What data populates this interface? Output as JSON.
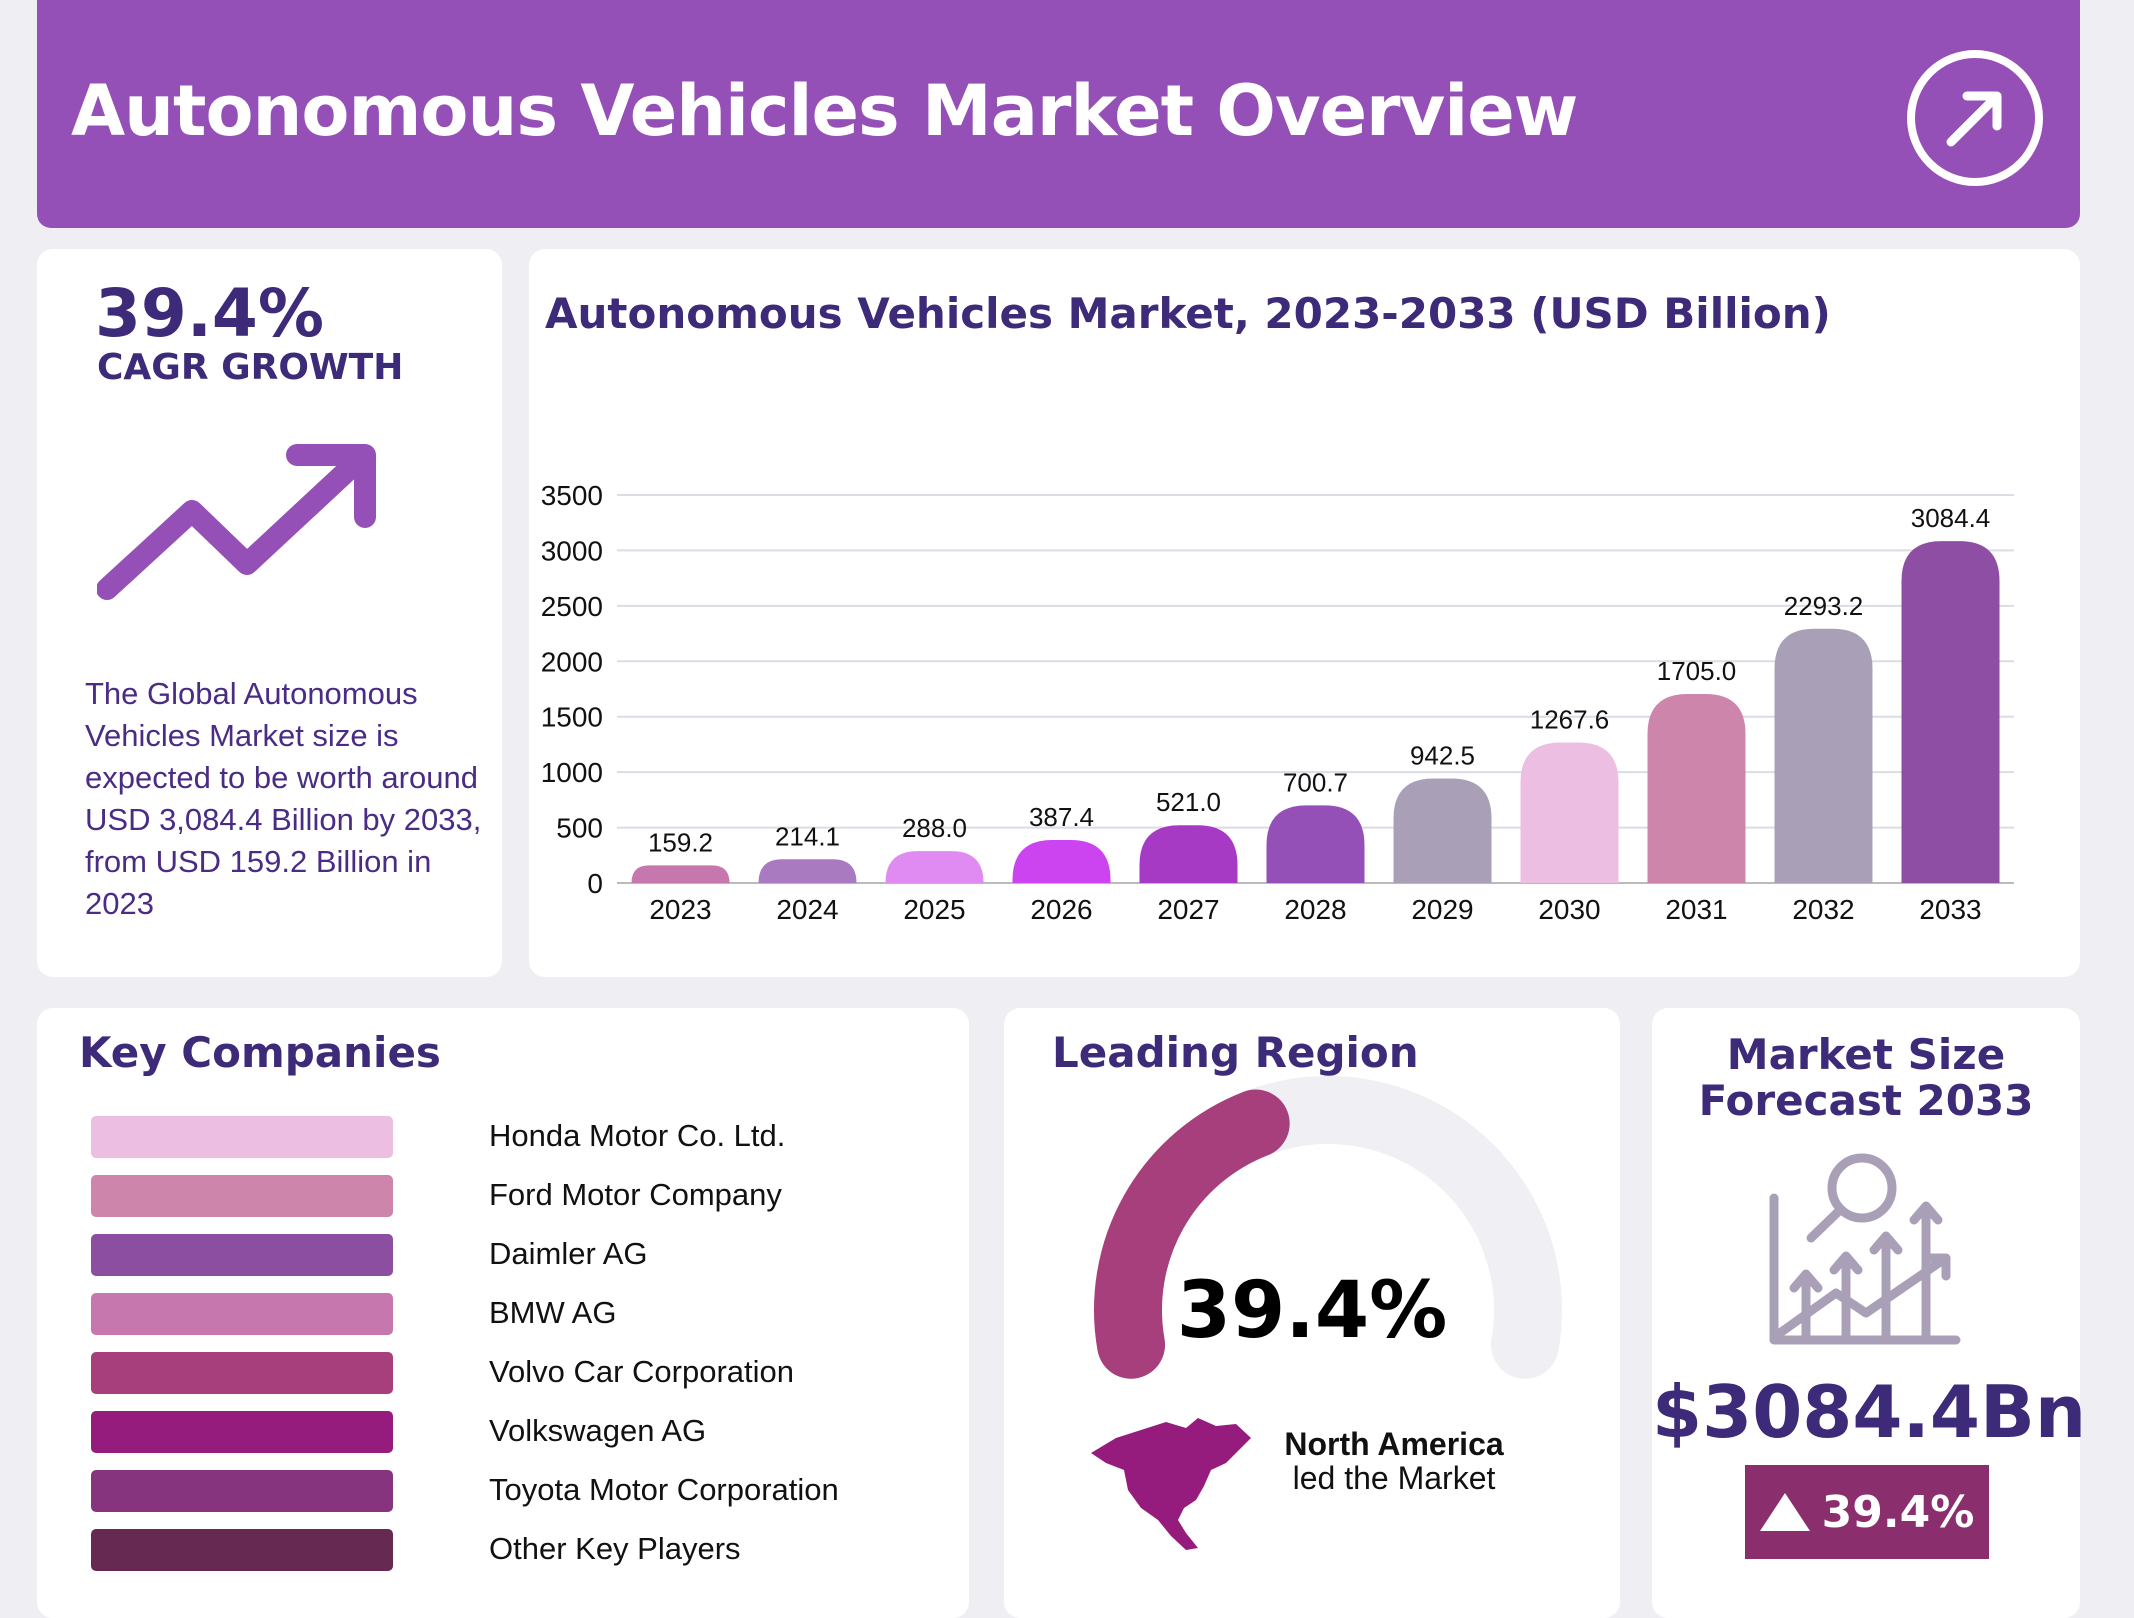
{
  "header": {
    "title": "Autonomous Vehicles Market Overview",
    "icon": "arrow-up-right-circle-icon"
  },
  "cagr": {
    "value": "39.4%",
    "label": "CAGR GROWTH",
    "icon": "trending-up-icon",
    "description": "The Global Autonomous Vehicles Market size is expected to be worth around USD 3,084.4 Billion by 2033, from USD 159.2 Billion in 2023"
  },
  "chart_data": {
    "type": "bar",
    "title": "Autonomous Vehicles Market, 2023-2033 (USD Billion)",
    "categories": [
      "2023",
      "2024",
      "2025",
      "2026",
      "2027",
      "2028",
      "2029",
      "2030",
      "2031",
      "2032",
      "2033"
    ],
    "values": [
      159.2,
      214.1,
      288.0,
      387.4,
      521.0,
      700.7,
      942.5,
      1267.6,
      1705.0,
      2293.2,
      3084.4
    ],
    "value_labels": [
      "159.2",
      "214.1",
      "288.0",
      "387.4",
      "521.0",
      "700.7",
      "942.5",
      "1267.6",
      "1705.0",
      "2293.2",
      "3084.4"
    ],
    "colors": [
      "#c677ad",
      "#a97ac0",
      "#e08bf2",
      "#cc44f0",
      "#a63ac4",
      "#9550b8",
      "#a9a0b8",
      "#ecbfe2",
      "#cd85ac",
      "#a9a0b8",
      "#8d4ea3"
    ],
    "yticks": [
      "0",
      "500",
      "1000",
      "1500",
      "2000",
      "2500",
      "3000",
      "3500"
    ],
    "ylim": [
      0,
      3500
    ],
    "grid": true,
    "xlabel": "",
    "ylabel": ""
  },
  "companies": {
    "title": "Key Companies",
    "items": [
      {
        "name": "Honda Motor Co. Ltd.",
        "color": "#ecbfe2"
      },
      {
        "name": "Ford Motor Company",
        "color": "#cd85ac"
      },
      {
        "name": "Daimler AG",
        "color": "#8b4ea0"
      },
      {
        "name": "BMW AG",
        "color": "#c677ad"
      },
      {
        "name": "Volvo Car Corporation",
        "color": "#a63f7b"
      },
      {
        "name": "Volkswagen AG",
        "color": "#951b7c"
      },
      {
        "name": "Toyota Motor Corporation",
        "color": "#86347e"
      },
      {
        "name": "Other Key Players",
        "color": "#662a52"
      }
    ]
  },
  "region": {
    "title": "Leading Region",
    "value": "39.4%",
    "fraction": 0.394,
    "name": "North America",
    "subtitle": "led the Market",
    "map_icon": "north-america-map-icon",
    "gauge_color": "#a63f7b"
  },
  "market_size": {
    "title_line1": "Market Size",
    "title_line2": "Forecast 2033",
    "value": "$3084.4Bn",
    "badge": "39.4%",
    "icon": "growth-analysis-icon"
  }
}
